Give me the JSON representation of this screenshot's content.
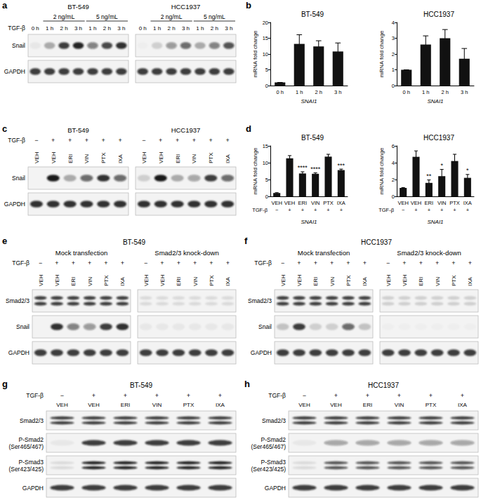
{
  "chart_data": [
    {
      "type": "bar",
      "panel": "b",
      "title": "BT-549",
      "categories": [
        "0 h",
        "1 h",
        "2 h",
        "3 h"
      ],
      "values": [
        1,
        13.2,
        12.4,
        10.8
      ],
      "errors": [
        0,
        2.9,
        1.8,
        2.7
      ],
      "ylim": [
        0,
        20
      ],
      "yticks": [
        0,
        5,
        10,
        15,
        20
      ],
      "y_label": "mRNA fold change",
      "x_label": "SNAI1",
      "color": "#111111",
      "grid": false
    },
    {
      "type": "bar",
      "title": "HCC1937",
      "categories": [
        "0 h",
        "1 h",
        "2 h",
        "3 h"
      ],
      "values": [
        1,
        2.6,
        3.0,
        1.7
      ],
      "errors": [
        0,
        0.55,
        0.55,
        0.65
      ],
      "ylim": [
        0,
        4
      ],
      "yticks": [
        0,
        1,
        2,
        3,
        4
      ],
      "y_label": "mRNA fold change",
      "x_label": "SNAI1",
      "color": "#111111",
      "grid": false
    },
    {
      "type": "bar",
      "panel": "d",
      "title": "BT-549",
      "categories": [
        "VEH",
        "VEH",
        "ERI",
        "VIN",
        "PTX",
        "IXA"
      ],
      "treatment_label": "TGF-β",
      "treatment": [
        "−",
        "+",
        "+",
        "+",
        "+",
        "+"
      ],
      "values": [
        1,
        11.3,
        6.8,
        6.7,
        11.8,
        7.8
      ],
      "errors": [
        0.1,
        0.8,
        0.5,
        0.3,
        0.7,
        0.3
      ],
      "significance": [
        null,
        null,
        "****",
        "****",
        null,
        "***"
      ],
      "ylim": [
        0,
        15
      ],
      "yticks": [
        0,
        5,
        10,
        15
      ],
      "y_label": "mRNA fold change",
      "x_label": "SNAI1",
      "color": "#111111",
      "grid": false
    },
    {
      "type": "bar",
      "title": "HCC1937",
      "categories": [
        "VEH",
        "VEH",
        "ERI",
        "VIN",
        "PTX",
        "IXA"
      ],
      "treatment_label": "TGF-β",
      "treatment": [
        "−",
        "+",
        "+",
        "+",
        "+",
        "+"
      ],
      "values": [
        1,
        4.7,
        1.6,
        2.4,
        4.2,
        2.2
      ],
      "errors": [
        0.05,
        0.7,
        0.35,
        0.8,
        0.8,
        0.4
      ],
      "significance": [
        null,
        null,
        "**",
        "*",
        null,
        "*"
      ],
      "ylim": [
        0,
        6
      ],
      "yticks": [
        0,
        2,
        4,
        6
      ],
      "y_label": "mRNA fold change",
      "x_label": "SNAI1",
      "color": "#111111",
      "grid": false
    }
  ],
  "blots": [
    {
      "panel": "a",
      "condition_label": "TGF-β",
      "lane_label_style": "horizontal",
      "sections": [
        {
          "title": "BT-549",
          "spans": [
            {
              "label": "2 ng/mL",
              "from": 1,
              "to": 3
            },
            {
              "label": "5 ng/mL",
              "from": 4,
              "to": 6
            }
          ],
          "lanes": [
            "0 h",
            "1 h",
            "2 h",
            "3 h",
            "1 h",
            "2 h",
            "3 h"
          ]
        },
        {
          "title": "HCC1937",
          "spans": [
            {
              "label": "2 ng/mL",
              "from": 1,
              "to": 3
            },
            {
              "label": "5 ng/mL",
              "from": 4,
              "to": 6
            }
          ],
          "lanes": [
            "0 h",
            "1 h",
            "2 h",
            "3 h",
            "1 h",
            "2 h",
            "3 h"
          ]
        }
      ],
      "rows": [
        {
          "label": "Snail",
          "bands": [
            [
              0.05,
              0.3,
              0.8,
              0.9,
              0.5,
              0.75,
              0.85
            ],
            [
              0.02,
              0.15,
              0.4,
              0.6,
              0.3,
              0.5,
              0.7
            ]
          ]
        },
        {
          "label": "GAPDH",
          "bands": [
            [
              0.8,
              0.8,
              0.8,
              0.8,
              0.8,
              0.8,
              0.8
            ],
            [
              0.8,
              0.8,
              0.8,
              0.8,
              0.8,
              0.8,
              0.8
            ]
          ]
        }
      ]
    },
    {
      "panel": "c",
      "condition_label": "TGF-β",
      "lane_label_style": "rotated",
      "sections": [
        {
          "title": "BT-549",
          "signs": [
            "−",
            "+",
            "+",
            "+",
            "+",
            "+"
          ],
          "lanes": [
            "VEH",
            "VEH",
            "ERI",
            "VIN",
            "PTX",
            "IXA"
          ]
        },
        {
          "title": "HCC1937",
          "signs": [
            "−",
            "+",
            "+",
            "+",
            "+",
            "+"
          ],
          "lanes": [
            "VEH",
            "VEH",
            "ERI",
            "VIN",
            "PTX",
            "IXA"
          ]
        }
      ],
      "rows": [
        {
          "label": "Snail",
          "bands": [
            [
              0,
              0.95,
              0.3,
              0.6,
              0.85,
              0.6
            ],
            [
              0.15,
              0.95,
              0.3,
              0.35,
              0.8,
              0.6
            ]
          ]
        },
        {
          "label": "GAPDH",
          "bands": [
            [
              0.85,
              0.85,
              0.85,
              0.85,
              0.85,
              0.85
            ],
            [
              0.85,
              0.85,
              0.85,
              0.85,
              0.85,
              0.85
            ]
          ]
        }
      ]
    },
    {
      "panel": "e",
      "title": "BT-549",
      "condition_label": "TGF-β",
      "lane_label_style": "rotated",
      "sections": [
        {
          "title": "Mock transfection",
          "signs": [
            "−",
            "+",
            "+",
            "+",
            "+",
            "+"
          ],
          "lanes": [
            "VEH",
            "VEH",
            "ERI",
            "VIN",
            "PTX",
            "IXA"
          ]
        },
        {
          "title": "Smad2/3 knock-down",
          "signs": [
            "−",
            "+",
            "+",
            "+",
            "+",
            "+"
          ],
          "lanes": [
            "VEH",
            "VEH",
            "ERI",
            "VIN",
            "PTX",
            "IXA"
          ]
        }
      ],
      "rows": [
        {
          "label": "Smad2/3",
          "doublet": true,
          "bands": [
            [
              0.8,
              0.8,
              0.8,
              0.8,
              0.8,
              0.8
            ],
            [
              0.1,
              0.1,
              0.1,
              0.1,
              0.1,
              0.1
            ]
          ]
        },
        {
          "label": "Snail",
          "bands": [
            [
              0,
              0.85,
              0.5,
              0.4,
              0.8,
              0.85
            ],
            [
              0.05,
              0.05,
              0.05,
              0.05,
              0.05,
              0.05
            ]
          ]
        },
        {
          "label": "GAPDH",
          "bands": [
            [
              0.8,
              0.8,
              0.8,
              0.8,
              0.8,
              0.8
            ],
            [
              0.8,
              0.8,
              0.8,
              0.8,
              0.8,
              0.8
            ]
          ]
        }
      ]
    },
    {
      "panel": "f",
      "title": "HCC1937",
      "condition_label": "TGF-β",
      "lane_label_style": "rotated",
      "sections": [
        {
          "title": "Mock transfection",
          "signs": [
            "−",
            "+",
            "+",
            "+",
            "+",
            "+"
          ],
          "lanes": [
            "VEH",
            "VEH",
            "ERI",
            "VIN",
            "PTX",
            "IXA"
          ]
        },
        {
          "title": "Smad2/3 knock-down",
          "signs": [
            "−",
            "+",
            "+",
            "+",
            "+",
            "+"
          ],
          "lanes": [
            "VEH",
            "VEH",
            "ERI",
            "VIN",
            "PTX",
            "IXA"
          ]
        }
      ],
      "rows": [
        {
          "label": "Smad2/3",
          "doublet": true,
          "bands": [
            [
              0.8,
              0.8,
              0.8,
              0.8,
              0.8,
              0.8
            ],
            [
              0.15,
              0.15,
              0.15,
              0.15,
              0.15,
              0.15
            ]
          ]
        },
        {
          "label": "Snail",
          "bands": [
            [
              0.2,
              0.8,
              0.15,
              0.15,
              0.6,
              0.2
            ],
            [
              0.02,
              0.02,
              0.02,
              0.02,
              0.02,
              0.02
            ]
          ]
        },
        {
          "label": "GAPDH",
          "bands": [
            [
              0.8,
              0.8,
              0.8,
              0.8,
              0.8,
              0.8
            ],
            [
              0.8,
              0.8,
              0.8,
              0.8,
              0.8,
              0.8
            ]
          ]
        }
      ]
    },
    {
      "panel": "g",
      "title": "BT-549",
      "condition_label": "TGF-β",
      "lane_label_style": "horizontal",
      "sections": [
        {
          "signs": [
            "−",
            "+",
            "+",
            "+",
            "+",
            "+"
          ],
          "lanes": [
            "VEH",
            "VEH",
            "ERI",
            "VIN",
            "PTX",
            "IXA"
          ]
        }
      ],
      "rows": [
        {
          "label": "Smad2/3",
          "doublet": true,
          "bands": [
            [
              0.8,
              0.8,
              0.8,
              0.8,
              0.8,
              0.8
            ]
          ]
        },
        {
          "label": [
            "P-Smad2",
            "(Ser465/467)"
          ],
          "bands": [
            [
              0.05,
              0.8,
              0.8,
              0.8,
              0.8,
              0.8
            ]
          ]
        },
        {
          "label": [
            "P-Smad3",
            "(Ser423/425)"
          ],
          "doublet": true,
          "bands": [
            [
              0.1,
              0.9,
              0.9,
              0.9,
              0.9,
              0.9
            ]
          ]
        },
        {
          "label": "GAPDH",
          "bands": [
            [
              0.8,
              0.8,
              0.8,
              0.8,
              0.8,
              0.8
            ]
          ]
        }
      ]
    },
    {
      "panel": "h",
      "title": "HCC1937",
      "condition_label": "TGF-β",
      "lane_label_style": "horizontal",
      "sections": [
        {
          "signs": [
            "−",
            "+",
            "+",
            "+",
            "+",
            "+"
          ],
          "lanes": [
            "VEH",
            "VEH",
            "ERI",
            "VIN",
            "PTX",
            "IXA"
          ]
        }
      ],
      "rows": [
        {
          "label": "Smad2/3",
          "doublet": true,
          "bands": [
            [
              0.8,
              0.8,
              0.8,
              0.8,
              0.8,
              0.8
            ]
          ]
        },
        {
          "label": [
            "P-Smad2",
            "(Ser465/467)"
          ],
          "bands": [
            [
              0.05,
              0.35,
              0.35,
              0.35,
              0.35,
              0.35
            ]
          ]
        },
        {
          "label": [
            "P-Smad3",
            "(Ser423/425)"
          ],
          "doublet": true,
          "bands": [
            [
              0.1,
              0.7,
              0.7,
              0.7,
              0.7,
              0.7
            ]
          ]
        },
        {
          "label": "GAPDH",
          "bands": [
            [
              0.8,
              0.8,
              0.8,
              0.8,
              0.8,
              0.8
            ]
          ]
        }
      ]
    }
  ]
}
